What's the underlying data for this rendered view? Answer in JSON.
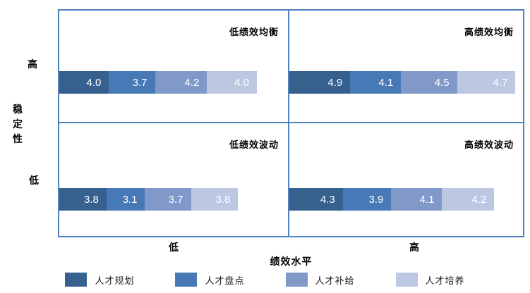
{
  "chart_data": {
    "type": "bar",
    "subtype": "quadrant_stacked_horizontal_bars",
    "title": "",
    "series": [
      "人才规划",
      "人才盘点",
      "人才补给",
      "人才培养"
    ],
    "colors": [
      "#36618E",
      "#4879B7",
      "#8199C8",
      "#BCC8E2"
    ],
    "frame_color": "#4E81BD",
    "quadrants": [
      {
        "position": "top-left",
        "label": "低绩效均衡",
        "stability": "高",
        "performance": "低",
        "values": [
          "4.0",
          "3.7",
          "4.2",
          "4.0"
        ]
      },
      {
        "position": "top-right",
        "label": "高绩效均衡",
        "stability": "高",
        "performance": "高",
        "values": [
          "4.9",
          "4.1",
          "4.5",
          "4.7"
        ]
      },
      {
        "position": "bottom-left",
        "label": "低绩效波动",
        "stability": "低",
        "performance": "低",
        "values": [
          "3.8",
          "3.1",
          "3.7",
          "3.8"
        ]
      },
      {
        "position": "bottom-right",
        "label": "高绩效波动",
        "stability": "低",
        "performance": "高",
        "values": [
          "4.3",
          "3.9",
          "4.1",
          "4.2"
        ]
      }
    ],
    "y_axis": {
      "title": "稳定性",
      "tick_top": "高",
      "tick_bottom": "低"
    },
    "x_axis": {
      "title": "绩效水平",
      "tick_left": "低",
      "tick_right": "高"
    },
    "legend_position": "bottom",
    "grid": false
  },
  "legend": {
    "items": [
      {
        "label": "人才规划",
        "color": "#36618E"
      },
      {
        "label": "人才盘点",
        "color": "#4879B7"
      },
      {
        "label": "人才补给",
        "color": "#8199C8"
      },
      {
        "label": "人才培养",
        "color": "#BCC8E2"
      }
    ]
  }
}
